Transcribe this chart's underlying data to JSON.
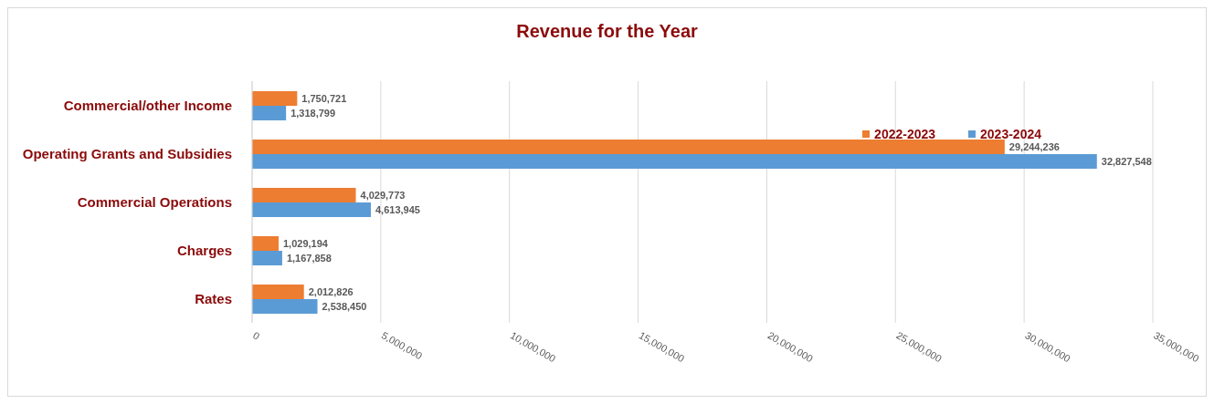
{
  "chart_data": {
    "type": "bar",
    "orientation": "horizontal",
    "title": "Revenue for the Year",
    "categories": [
      "Commercial/other Income",
      "Operating Grants and Subsidies",
      "Commercial Operations",
      "Charges",
      "Rates"
    ],
    "series": [
      {
        "name": "2022-2023",
        "color": "#ed7d31",
        "values": [
          1750721,
          29244236,
          4029773,
          1029194,
          2012826
        ],
        "value_labels": [
          "1,750,721",
          "29,244,236",
          "4,029,773",
          "1,029,194",
          "2,012,826"
        ]
      },
      {
        "name": "2023-2024",
        "color": "#5b9bd5",
        "values": [
          1318799,
          32827548,
          4613945,
          1167858,
          2538450
        ],
        "value_labels": [
          "1,318,799",
          "32,827,548",
          "4,613,945",
          "1,167,858",
          "2,538,450"
        ]
      }
    ],
    "xlim": [
      0,
      35000000
    ],
    "xticks": [
      0,
      {
        "value": 5000000,
        "label": "5,000,000"
      },
      {
        "value": 10000000,
        "label": "10,000,000"
      },
      {
        "value": 15000000,
        "label": "15,000,000"
      },
      {
        "value": 20000000,
        "label": "20,000,000"
      },
      {
        "value": 25000000,
        "label": "25,000,000"
      },
      {
        "value": 30000000,
        "label": "30,000,000"
      },
      {
        "value": 35000000,
        "label": "35,000,000"
      }
    ],
    "grid": "x",
    "legend": "top right"
  }
}
